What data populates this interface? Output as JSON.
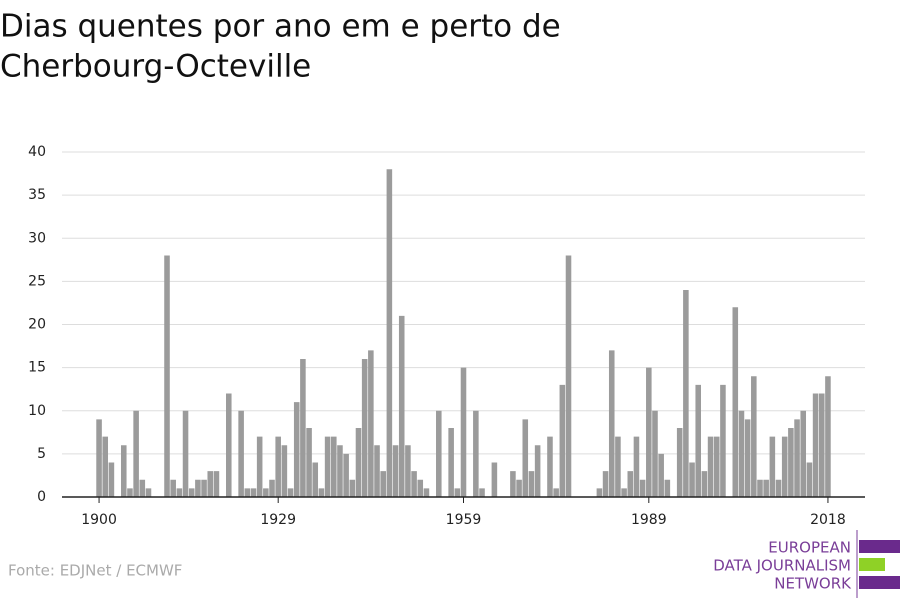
{
  "chart_data": {
    "type": "bar",
    "title": [
      "Dias quentes por ano em e perto de",
      "Cherbourg-Octeville"
    ],
    "source": "Fonte: EDJNet / ECMWF",
    "logo": [
      "EUROPEAN",
      "DATA JOURNALISM",
      "NETWORK"
    ],
    "color": "#9b9b9b",
    "x": [
      1900,
      1901,
      1902,
      1903,
      1904,
      1905,
      1906,
      1907,
      1908,
      1909,
      1910,
      1911,
      1912,
      1913,
      1914,
      1915,
      1916,
      1917,
      1918,
      1919,
      1920,
      1921,
      1922,
      1923,
      1924,
      1925,
      1926,
      1927,
      1928,
      1929,
      1930,
      1931,
      1932,
      1933,
      1934,
      1935,
      1936,
      1937,
      1938,
      1939,
      1940,
      1941,
      1942,
      1943,
      1944,
      1945,
      1946,
      1947,
      1948,
      1949,
      1950,
      1951,
      1952,
      1953,
      1954,
      1955,
      1956,
      1957,
      1958,
      1959,
      1960,
      1961,
      1962,
      1963,
      1964,
      1965,
      1966,
      1967,
      1968,
      1969,
      1970,
      1971,
      1972,
      1973,
      1974,
      1975,
      1976,
      1977,
      1978,
      1979,
      1980,
      1981,
      1982,
      1983,
      1984,
      1985,
      1986,
      1987,
      1988,
      1989,
      1990,
      1991,
      1992,
      1993,
      1994,
      1995,
      1996,
      1997,
      1998,
      1999,
      2000,
      2001,
      2002,
      2003,
      2004,
      2005,
      2006,
      2007,
      2008,
      2009,
      2010,
      2011,
      2012,
      2013,
      2014,
      2015,
      2016,
      2017,
      2018
    ],
    "values": [
      9,
      7,
      4,
      0,
      6,
      1,
      10,
      2,
      1,
      0,
      0,
      28,
      2,
      1,
      10,
      1,
      2,
      2,
      3,
      3,
      0,
      12,
      0,
      10,
      1,
      1,
      7,
      1,
      2,
      7,
      6,
      1,
      11,
      16,
      8,
      4,
      1,
      7,
      7,
      6,
      5,
      2,
      8,
      16,
      17,
      6,
      3,
      38,
      6,
      21,
      6,
      3,
      2,
      1,
      0,
      10,
      0,
      8,
      1,
      15,
      0,
      10,
      1,
      0,
      4,
      0,
      0,
      3,
      2,
      9,
      3,
      6,
      0,
      7,
      1,
      13,
      28,
      0,
      0,
      0,
      0,
      1,
      3,
      17,
      7,
      1,
      3,
      7,
      2,
      15,
      10,
      5,
      2,
      0,
      8,
      24,
      4,
      13,
      3,
      7,
      7,
      13,
      0,
      22,
      10,
      9,
      14,
      2,
      2,
      7,
      2,
      7,
      8,
      9,
      10,
      4,
      12,
      12,
      14
    ],
    "xlim": [
      1894,
      2024
    ],
    "xticks": [
      1900,
      1929,
      1959,
      1989,
      2018
    ],
    "ylim": [
      0,
      40
    ],
    "yticks": [
      0,
      5,
      10,
      15,
      20,
      25,
      30,
      35,
      40
    ],
    "grid": true
  }
}
